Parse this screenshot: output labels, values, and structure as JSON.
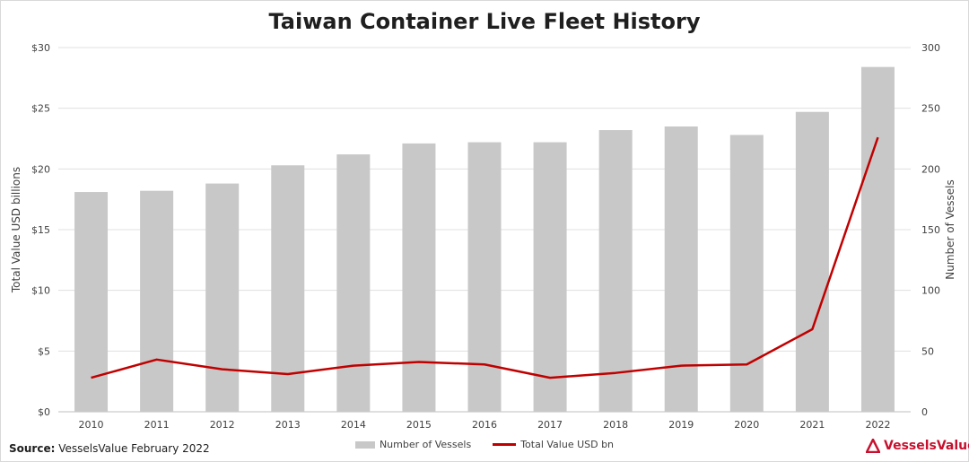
{
  "title": "Taiwan Container Live Fleet History",
  "source_label": "Source:",
  "source_text": "VesselsValue February 2022",
  "brand": "VesselsValue",
  "colors": {
    "bar": "#c8c8c8",
    "line": "#c00000",
    "grid": "#e0e0e0",
    "brand": "#c8102e"
  },
  "chart_data": {
    "type": "bar",
    "categories": [
      "2010",
      "2011",
      "2012",
      "2013",
      "2014",
      "2015",
      "2016",
      "2017",
      "2018",
      "2019",
      "2020",
      "2021",
      "2022"
    ],
    "series": [
      {
        "name": "Number of Vessels",
        "type": "bar",
        "axis": "right",
        "values": [
          181,
          182,
          188,
          203,
          212,
          221,
          222,
          222,
          232,
          235,
          228,
          247,
          284
        ]
      },
      {
        "name": "Total Value USD bn",
        "type": "line",
        "axis": "left",
        "values": [
          2.8,
          4.3,
          3.5,
          3.1,
          3.8,
          4.1,
          3.9,
          2.8,
          3.2,
          3.8,
          3.9,
          6.8,
          22.6
        ]
      }
    ],
    "ylabel": "Total Value USD billions",
    "y2label": "Number of Vessels",
    "ylim": [
      0,
      30
    ],
    "y2lim": [
      0,
      300
    ],
    "yticks": [
      "$0",
      "$5",
      "$10",
      "$15",
      "$20",
      "$25",
      "$30"
    ],
    "y2ticks": [
      "0",
      "50",
      "100",
      "150",
      "200",
      "250",
      "300"
    ],
    "grid": true,
    "legend": "bottom-center"
  }
}
